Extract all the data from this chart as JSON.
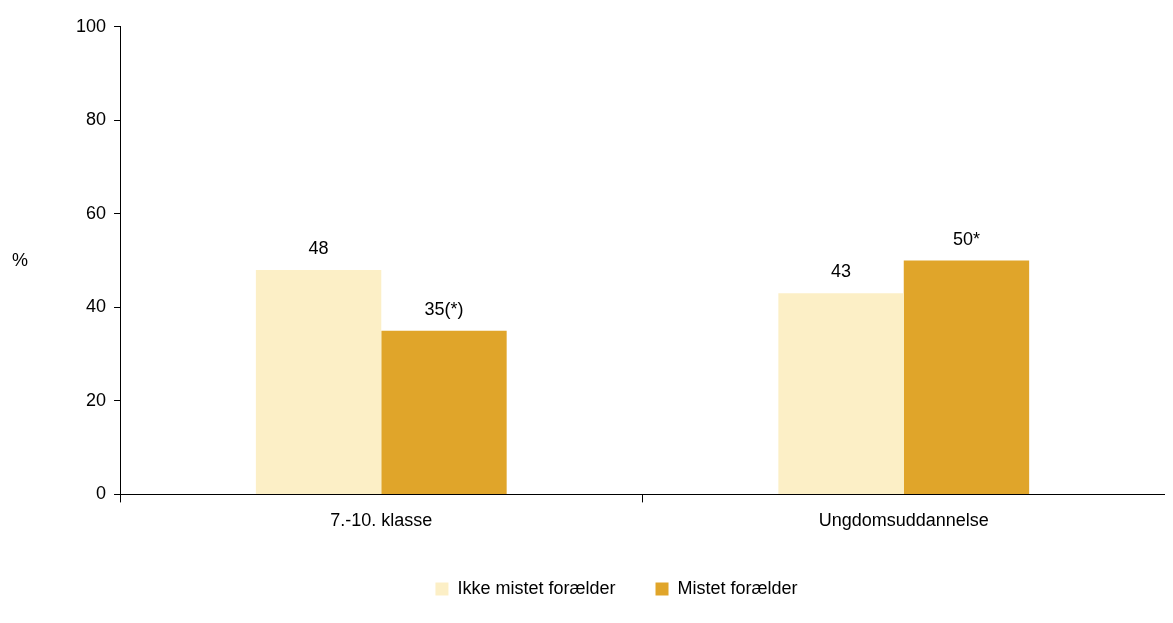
{
  "chart_data": {
    "type": "bar",
    "ylabel": "%",
    "categories": [
      "7.-10. klasse",
      "Ungdomsuddannelse"
    ],
    "series": [
      {
        "name": "Ikke mistet forælder",
        "color": "#fcefc6",
        "values": [
          48,
          43
        ],
        "value_labels": [
          "48",
          "43"
        ]
      },
      {
        "name": "Mistet forælder",
        "color": "#e0a52a",
        "values": [
          35,
          50
        ],
        "value_labels": [
          "35(*)",
          "50*"
        ]
      }
    ],
    "ylim": [
      0,
      100
    ],
    "yticks": [
      0,
      20,
      40,
      60,
      80,
      100
    ],
    "grid": false,
    "legend": "bottom"
  }
}
